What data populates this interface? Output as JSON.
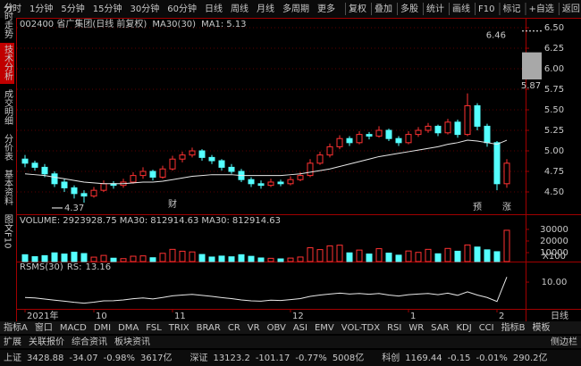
{
  "toolbar": {
    "left": [
      "分时",
      "1分钟",
      "5分钟",
      "15分钟",
      "30分钟",
      "60分钟",
      "日线",
      "周线",
      "月线",
      "多周期",
      "更多"
    ],
    "right": [
      "复权",
      "叠加",
      "多股",
      "统计",
      "画线",
      "F10",
      "标记",
      "+自选",
      "返回"
    ]
  },
  "side_tabs": [
    "分时走势",
    "技术分析",
    "成交明细",
    "分价表",
    "基本资料",
    "图文F10"
  ],
  "chart_data": {
    "type": "candlestick",
    "title": "002400 省广集团(日线 前复权)",
    "ma_label": "MA30(30)",
    "ma1_label": "MA1:",
    "ma1_value": 5.13,
    "up_color": "#ff3232",
    "down_color": "#54ffff",
    "ma_color": "#e8e8e8",
    "grid": true,
    "ylim": [
      4.25,
      6.62
    ],
    "yticks": [
      {
        "value": 4.5,
        "label": "4.50"
      },
      4.75,
      {
        "value": 5,
        "label": "5.00"
      },
      5.25,
      {
        "value": 5.5,
        "label": "5.50"
      },
      5.75,
      {
        "value": 6,
        "label": "6.00"
      },
      6.25,
      {
        "value": 6.5,
        "label": "6.50"
      }
    ],
    "x": [
      "2021年",
      null,
      null,
      null,
      null,
      null,
      null,
      "10",
      null,
      null,
      null,
      null,
      null,
      null,
      null,
      "11",
      null,
      null,
      null,
      null,
      null,
      null,
      null,
      null,
      null,
      null,
      null,
      "12",
      null,
      null,
      null,
      null,
      null,
      null,
      null,
      null,
      null,
      null,
      null,
      "1",
      null,
      null,
      null,
      null,
      null,
      null,
      null,
      null,
      "2",
      null
    ],
    "candles": [
      [
        4.9,
        4.95,
        4.8,
        4.85
      ],
      [
        4.85,
        4.88,
        4.76,
        4.8
      ],
      [
        4.8,
        4.84,
        4.68,
        4.72
      ],
      [
        4.72,
        4.75,
        4.56,
        4.6
      ],
      [
        4.62,
        4.66,
        4.5,
        4.55
      ],
      [
        4.55,
        4.58,
        4.42,
        4.48
      ],
      [
        4.48,
        4.52,
        4.37,
        4.45
      ],
      [
        4.45,
        4.56,
        4.43,
        4.52
      ],
      [
        4.52,
        4.64,
        4.5,
        4.6
      ],
      [
        4.6,
        4.63,
        4.54,
        4.58
      ],
      [
        4.58,
        4.66,
        4.55,
        4.62
      ],
      [
        4.62,
        4.74,
        4.6,
        4.7
      ],
      [
        4.7,
        4.8,
        4.66,
        4.75
      ],
      [
        4.75,
        4.77,
        4.64,
        4.68
      ],
      [
        4.68,
        4.82,
        4.66,
        4.78
      ],
      [
        4.78,
        4.94,
        4.76,
        4.9
      ],
      [
        4.9,
        4.99,
        4.86,
        4.95
      ],
      [
        4.95,
        5.04,
        4.92,
        5.0
      ],
      [
        5.0,
        5.02,
        4.88,
        4.92
      ],
      [
        4.92,
        4.95,
        4.84,
        4.88
      ],
      [
        4.88,
        4.9,
        4.76,
        4.8
      ],
      [
        4.8,
        4.84,
        4.72,
        4.75
      ],
      [
        4.75,
        4.78,
        4.62,
        4.65
      ],
      [
        4.65,
        4.68,
        4.56,
        4.6
      ],
      [
        4.6,
        4.64,
        4.54,
        4.58
      ],
      [
        4.58,
        4.66,
        4.56,
        4.62
      ],
      [
        4.62,
        4.65,
        4.57,
        4.6
      ],
      [
        4.6,
        4.69,
        4.58,
        4.65
      ],
      [
        4.65,
        4.74,
        4.63,
        4.7
      ],
      [
        4.7,
        4.9,
        4.68,
        4.85
      ],
      [
        4.85,
        4.99,
        4.83,
        4.95
      ],
      [
        4.95,
        5.09,
        4.92,
        5.05
      ],
      [
        5.05,
        5.19,
        5.02,
        5.15
      ],
      [
        5.15,
        5.18,
        5.06,
        5.1
      ],
      [
        5.1,
        5.24,
        5.08,
        5.2
      ],
      [
        5.2,
        5.23,
        5.14,
        5.18
      ],
      [
        5.18,
        5.3,
        5.16,
        5.25
      ],
      [
        5.25,
        5.27,
        5.12,
        5.15
      ],
      [
        5.15,
        5.18,
        5.06,
        5.1
      ],
      [
        5.1,
        5.24,
        5.08,
        5.2
      ],
      [
        5.2,
        5.29,
        5.17,
        5.25
      ],
      [
        5.25,
        5.34,
        5.22,
        5.3
      ],
      [
        5.3,
        5.32,
        5.18,
        5.22
      ],
      [
        5.22,
        5.39,
        5.2,
        5.35
      ],
      [
        5.35,
        5.38,
        5.16,
        5.2
      ],
      [
        5.2,
        5.7,
        5.18,
        5.55
      ],
      [
        5.55,
        5.58,
        5.25,
        5.3
      ],
      [
        5.3,
        5.33,
        5.05,
        5.1
      ],
      [
        5.1,
        5.12,
        4.52,
        4.6
      ],
      [
        4.6,
        4.9,
        4.55,
        4.85
      ]
    ],
    "ma30": [
      4.72,
      4.71,
      4.7,
      4.68,
      4.66,
      4.64,
      4.62,
      4.61,
      4.6,
      4.6,
      4.6,
      4.61,
      4.62,
      4.62,
      4.63,
      4.65,
      4.67,
      4.69,
      4.7,
      4.71,
      4.71,
      4.71,
      4.7,
      4.7,
      4.7,
      4.7,
      4.7,
      4.71,
      4.72,
      4.74,
      4.76,
      4.78,
      4.81,
      4.84,
      4.87,
      4.9,
      4.93,
      4.95,
      4.97,
      4.99,
      5.01,
      5.03,
      5.05,
      5.08,
      5.1,
      5.13,
      5.12,
      5.1,
      5.08,
      5.13
    ],
    "projection": {
      "low": 5.87,
      "high": 6.2,
      "peak": 6.46
    },
    "annotations": [
      "财",
      "预",
      "涨"
    ],
    "volume": {
      "label": "VOLUME:",
      "value": 2923928.75,
      "ma_label": "MA30:",
      "ma_value": 812914.63,
      "ma2_label": "MA30:",
      "ma2_value": 812914.63,
      "unit": "X100",
      "ylim": [
        0,
        41500
      ],
      "yticks": [
        10000,
        20000,
        30000
      ],
      "values": [
        8200,
        6500,
        7400,
        9800,
        8800,
        10400,
        9200,
        6100,
        7600,
        5200,
        4800,
        6900,
        7200,
        5600,
        9400,
        12800,
        11200,
        10600,
        8400,
        6200,
        7000,
        6400,
        8200,
        6800,
        5400,
        5100,
        4600,
        5300,
        6200,
        14200,
        12600,
        15800,
        16400,
        9800,
        12200,
        8800,
        13400,
        9600,
        7800,
        11400,
        10200,
        12800,
        9000,
        13600,
        11200,
        16600,
        14800,
        12400,
        10800,
        29239.29
      ]
    },
    "rs": {
      "label": "RSMS(30)",
      "rs_label": "RS:",
      "rs_value": 13.16,
      "ylim": [
        -6,
        20.5
      ],
      "yticks": [
        {
          "value": 10,
          "label": "10.00"
        }
      ],
      "values": [
        0.5,
        0.2,
        -0.5,
        -1.2,
        -1.8,
        -2.5,
        -3.0,
        -2.4,
        -1.6,
        -1.5,
        -1.0,
        -0.3,
        0.2,
        -0.4,
        0.5,
        1.5,
        2.0,
        2.4,
        1.8,
        1.2,
        0.4,
        -0.2,
        -1.0,
        -1.6,
        -1.8,
        -1.2,
        -1.4,
        -0.8,
        -0.2,
        1.2,
        2.0,
        2.6,
        3.2,
        2.6,
        3.0,
        2.5,
        3.0,
        2.0,
        1.4,
        2.2,
        2.6,
        3.0,
        2.2,
        3.2,
        1.8,
        4.0,
        2.0,
        0.5,
        -2.0,
        13.16
      ]
    },
    "period_label": "日线"
  },
  "bottom_tabs": [
    "指标A",
    "窗口",
    "MACD",
    "DMI",
    "DMA",
    "FSL",
    "TRIX",
    "BRAR",
    "CR",
    "VR",
    "OBV",
    "ASI",
    "EMV",
    "VOL-TDX",
    "RSI",
    "WR",
    "SAR",
    "KDJ",
    "CCI",
    "指标B",
    "模板"
  ],
  "ext_tabs": [
    "扩展",
    "关联报价",
    "综合资讯",
    "板块资讯"
  ],
  "sidebar": "侧边栏",
  "status": [
    {
      "name": "上证",
      "price": 3428.88,
      "change": -34.07,
      "pct": "-0.98%",
      "amount": "3617亿"
    },
    {
      "name": "深证",
      "price": 13123.2,
      "change": -101.17,
      "pct": "-0.77%",
      "amount": "5008亿"
    },
    {
      "name": "科创",
      "price": 1169.44,
      "change": -0.15,
      "pct": "-0.01%",
      "amount": "290.2亿"
    }
  ]
}
